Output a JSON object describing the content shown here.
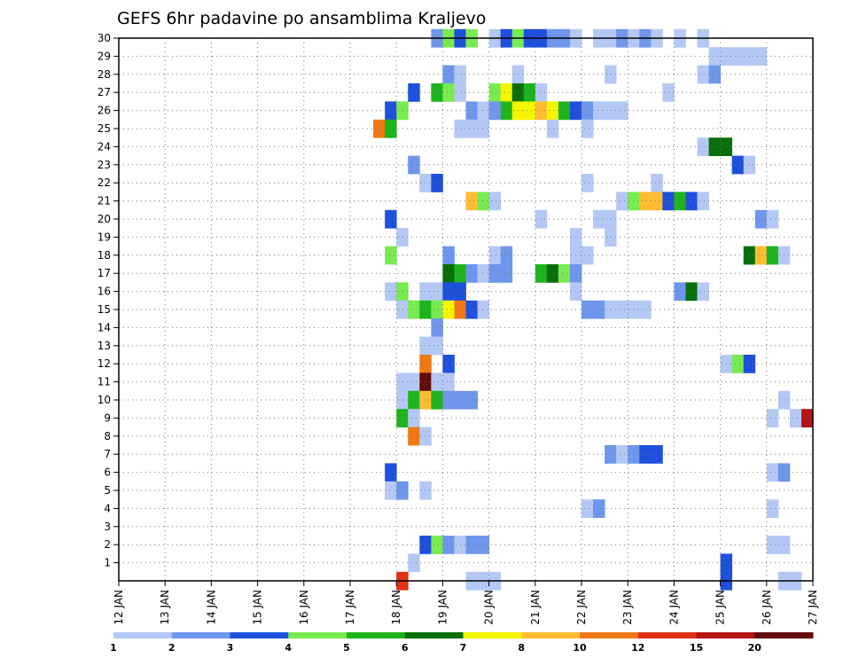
{
  "chart_data": {
    "type": "heatmap",
    "title": "GEFS 6hr padavine po ansamblima Kraljevo",
    "xlabel": "",
    "ylabel": "",
    "x_tick_labels": [
      "12 JAN",
      "13 JAN",
      "14 JAN",
      "15 JAN",
      "16 JAN",
      "17 JAN",
      "18 JAN",
      "19 JAN",
      "20 JAN",
      "21 JAN",
      "22 JAN",
      "23 JAN",
      "24 JAN",
      "25 JAN",
      "26 JAN",
      "27 JAN"
    ],
    "y_tick_labels": [
      "1",
      "2",
      "3",
      "4",
      "5",
      "6",
      "7",
      "8",
      "9",
      "10",
      "11",
      "12",
      "13",
      "14",
      "15",
      "16",
      "17",
      "18",
      "19",
      "20",
      "21",
      "22",
      "23",
      "24",
      "25",
      "26",
      "27",
      "28",
      "29",
      "30"
    ],
    "xlim": [
      0,
      60
    ],
    "ylim": [
      0,
      30
    ],
    "grid": true,
    "colorbar_thresholds": [
      "1",
      "2",
      "3",
      "4",
      "5",
      "6",
      "7",
      "8",
      "10",
      "12",
      "15",
      "20"
    ],
    "colorbar_colors": [
      "#b4c8f5",
      "#6e96eb",
      "#1e50dc",
      "#78eb50",
      "#1eb41e",
      "#0a6e0a",
      "#f5f500",
      "#ffbe32",
      "#f07814",
      "#e03214",
      "#b41414",
      "#640a0a"
    ],
    "cell_note": "each cell = [x_step_6h, member_row, class_index]",
    "cells": [
      [
        27,
        30,
        1
      ],
      [
        28,
        30,
        3
      ],
      [
        29,
        30,
        2
      ],
      [
        30,
        30,
        3
      ],
      [
        32,
        30,
        0
      ],
      [
        33,
        30,
        2
      ],
      [
        34,
        30,
        3
      ],
      [
        35,
        30,
        2
      ],
      [
        36,
        30,
        2
      ],
      [
        37,
        30,
        1
      ],
      [
        38,
        30,
        1
      ],
      [
        39,
        30,
        0
      ],
      [
        41,
        30,
        0
      ],
      [
        42,
        30,
        0
      ],
      [
        43,
        30,
        1
      ],
      [
        44,
        30,
        0
      ],
      [
        45,
        30,
        1
      ],
      [
        46,
        30,
        0
      ],
      [
        48,
        30,
        0
      ],
      [
        50,
        30,
        0
      ],
      [
        51,
        29,
        0
      ],
      [
        52,
        29,
        0
      ],
      [
        53,
        29,
        0
      ],
      [
        54,
        29,
        0
      ],
      [
        55,
        29,
        0
      ],
      [
        28,
        28,
        1
      ],
      [
        29,
        28,
        0
      ],
      [
        34,
        28,
        0
      ],
      [
        42,
        28,
        0
      ],
      [
        50,
        28,
        0
      ],
      [
        51,
        28,
        1
      ],
      [
        25,
        27,
        2
      ],
      [
        27,
        27,
        4
      ],
      [
        28,
        27,
        3
      ],
      [
        29,
        27,
        0
      ],
      [
        32,
        27,
        3
      ],
      [
        33,
        27,
        6
      ],
      [
        34,
        27,
        5
      ],
      [
        35,
        27,
        4
      ],
      [
        36,
        27,
        0
      ],
      [
        47,
        27,
        0
      ],
      [
        23,
        26,
        2
      ],
      [
        24,
        26,
        3
      ],
      [
        30,
        26,
        1
      ],
      [
        31,
        26,
        0
      ],
      [
        32,
        26,
        1
      ],
      [
        33,
        26,
        4
      ],
      [
        34,
        26,
        6
      ],
      [
        35,
        26,
        6
      ],
      [
        36,
        26,
        7
      ],
      [
        37,
        26,
        6
      ],
      [
        38,
        26,
        4
      ],
      [
        39,
        26,
        2
      ],
      [
        40,
        26,
        1
      ],
      [
        41,
        26,
        0
      ],
      [
        42,
        26,
        0
      ],
      [
        43,
        26,
        0
      ],
      [
        22,
        25,
        8
      ],
      [
        23,
        25,
        4
      ],
      [
        29,
        25,
        0
      ],
      [
        30,
        25,
        0
      ],
      [
        31,
        25,
        0
      ],
      [
        37,
        25,
        0
      ],
      [
        40,
        25,
        0
      ],
      [
        50,
        24,
        0
      ],
      [
        51,
        24,
        5
      ],
      [
        52,
        24,
        5
      ],
      [
        25,
        23,
        1
      ],
      [
        53,
        23,
        2
      ],
      [
        54,
        23,
        0
      ],
      [
        26,
        22,
        0
      ],
      [
        27,
        22,
        2
      ],
      [
        40,
        22,
        0
      ],
      [
        46,
        22,
        0
      ],
      [
        30,
        21,
        7
      ],
      [
        31,
        21,
        3
      ],
      [
        32,
        21,
        0
      ],
      [
        43,
        21,
        0
      ],
      [
        44,
        21,
        3
      ],
      [
        45,
        21,
        7
      ],
      [
        46,
        21,
        7
      ],
      [
        47,
        21,
        2
      ],
      [
        48,
        21,
        4
      ],
      [
        49,
        21,
        2
      ],
      [
        50,
        21,
        0
      ],
      [
        23,
        20,
        2
      ],
      [
        36,
        20,
        0
      ],
      [
        41,
        20,
        0
      ],
      [
        42,
        20,
        0
      ],
      [
        55,
        20,
        1
      ],
      [
        56,
        20,
        0
      ],
      [
        24,
        19,
        0
      ],
      [
        39,
        19,
        0
      ],
      [
        42,
        19,
        0
      ],
      [
        23,
        18,
        3
      ],
      [
        28,
        18,
        1
      ],
      [
        32,
        18,
        0
      ],
      [
        33,
        18,
        1
      ],
      [
        39,
        18,
        0
      ],
      [
        40,
        18,
        0
      ],
      [
        54,
        18,
        5
      ],
      [
        55,
        18,
        7
      ],
      [
        56,
        18,
        4
      ],
      [
        57,
        18,
        0
      ],
      [
        28,
        17,
        5
      ],
      [
        29,
        17,
        4
      ],
      [
        30,
        17,
        1
      ],
      [
        31,
        17,
        0
      ],
      [
        32,
        17,
        1
      ],
      [
        33,
        17,
        1
      ],
      [
        36,
        17,
        4
      ],
      [
        37,
        17,
        5
      ],
      [
        38,
        17,
        3
      ],
      [
        39,
        17,
        1
      ],
      [
        23,
        16,
        0
      ],
      [
        24,
        16,
        3
      ],
      [
        26,
        16,
        0
      ],
      [
        27,
        16,
        0
      ],
      [
        28,
        16,
        2
      ],
      [
        29,
        16,
        2
      ],
      [
        39,
        16,
        0
      ],
      [
        48,
        16,
        1
      ],
      [
        49,
        16,
        5
      ],
      [
        50,
        16,
        0
      ],
      [
        24,
        15,
        0
      ],
      [
        25,
        15,
        3
      ],
      [
        26,
        15,
        4
      ],
      [
        27,
        15,
        3
      ],
      [
        28,
        15,
        6
      ],
      [
        29,
        15,
        8
      ],
      [
        30,
        15,
        2
      ],
      [
        31,
        15,
        0
      ],
      [
        40,
        15,
        1
      ],
      [
        41,
        15,
        1
      ],
      [
        42,
        15,
        0
      ],
      [
        43,
        15,
        0
      ],
      [
        44,
        15,
        0
      ],
      [
        45,
        15,
        0
      ],
      [
        27,
        14,
        1
      ],
      [
        26,
        13,
        0
      ],
      [
        27,
        13,
        0
      ],
      [
        26,
        12,
        8
      ],
      [
        28,
        12,
        2
      ],
      [
        52,
        12,
        0
      ],
      [
        53,
        12,
        3
      ],
      [
        54,
        12,
        2
      ],
      [
        24,
        11,
        0
      ],
      [
        25,
        11,
        0
      ],
      [
        26,
        11,
        11
      ],
      [
        27,
        11,
        0
      ],
      [
        28,
        11,
        0
      ],
      [
        24,
        10,
        0
      ],
      [
        25,
        10,
        4
      ],
      [
        26,
        10,
        7
      ],
      [
        27,
        10,
        4
      ],
      [
        28,
        10,
        1
      ],
      [
        29,
        10,
        1
      ],
      [
        30,
        10,
        1
      ],
      [
        57,
        10,
        0
      ],
      [
        24,
        9,
        4
      ],
      [
        25,
        9,
        0
      ],
      [
        56,
        9,
        0
      ],
      [
        58,
        9,
        0
      ],
      [
        59,
        9,
        10
      ],
      [
        25,
        8,
        8
      ],
      [
        26,
        8,
        0
      ],
      [
        42,
        7,
        1
      ],
      [
        43,
        7,
        0
      ],
      [
        44,
        7,
        1
      ],
      [
        45,
        7,
        2
      ],
      [
        46,
        7,
        2
      ],
      [
        23,
        6,
        2
      ],
      [
        56,
        6,
        0
      ],
      [
        57,
        6,
        1
      ],
      [
        23,
        5,
        0
      ],
      [
        24,
        5,
        1
      ],
      [
        26,
        5,
        0
      ],
      [
        40,
        4,
        0
      ],
      [
        41,
        4,
        1
      ],
      [
        56,
        4,
        0
      ],
      [
        26,
        2,
        2
      ],
      [
        27,
        2,
        3
      ],
      [
        28,
        2,
        1
      ],
      [
        29,
        2,
        0
      ],
      [
        30,
        2,
        1
      ],
      [
        31,
        2,
        1
      ],
      [
        56,
        2,
        0
      ],
      [
        57,
        2,
        0
      ],
      [
        25,
        1,
        0
      ],
      [
        52,
        1,
        2
      ],
      [
        24,
        0,
        9
      ],
      [
        30,
        0,
        0
      ],
      [
        31,
        0,
        0
      ],
      [
        32,
        0,
        0
      ],
      [
        52,
        0,
        2
      ],
      [
        57,
        0,
        0
      ],
      [
        58,
        0,
        0
      ]
    ]
  }
}
